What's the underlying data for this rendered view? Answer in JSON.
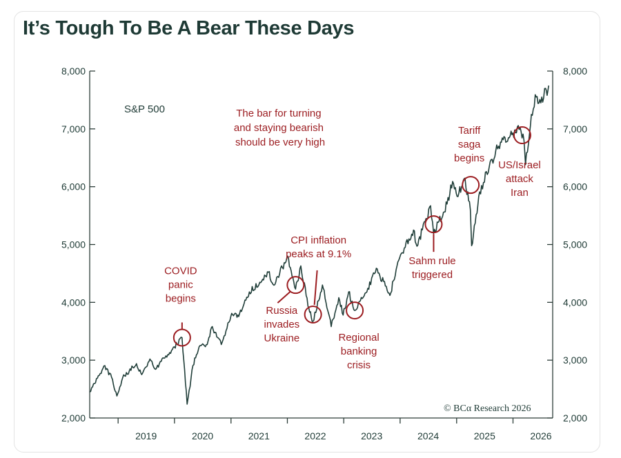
{
  "title": "It’s Tough To Be A Bear These Days",
  "chart_data": {
    "type": "line",
    "series": [
      {
        "name": "S&P 500",
        "points": [
          [
            "2018-07-01",
            2450
          ],
          [
            "2018-08-20",
            2690
          ],
          [
            "2018-10-01",
            2900
          ],
          [
            "2018-11-20",
            2700
          ],
          [
            "2018-12-24",
            2380
          ],
          [
            "2019-01-31",
            2700
          ],
          [
            "2019-04-30",
            2940
          ],
          [
            "2019-06-03",
            2750
          ],
          [
            "2019-07-26",
            3020
          ],
          [
            "2019-08-26",
            2850
          ],
          [
            "2019-10-31",
            3040
          ],
          [
            "2019-12-31",
            3230
          ],
          [
            "2020-02-19",
            3390
          ],
          [
            "2020-03-23",
            2240
          ],
          [
            "2020-04-30",
            2910
          ],
          [
            "2020-06-08",
            3230
          ],
          [
            "2020-07-31",
            3270
          ],
          [
            "2020-09-02",
            3580
          ],
          [
            "2020-10-30",
            3270
          ],
          [
            "2020-12-31",
            3760
          ],
          [
            "2021-02-26",
            3810
          ],
          [
            "2021-04-30",
            4180
          ],
          [
            "2021-06-30",
            4300
          ],
          [
            "2021-08-31",
            4520
          ],
          [
            "2021-09-30",
            4310
          ],
          [
            "2021-11-30",
            4600
          ],
          [
            "2022-01-03",
            4800
          ],
          [
            "2022-02-23",
            4230
          ],
          [
            "2022-03-29",
            4630
          ],
          [
            "2022-05-20",
            3900
          ],
          [
            "2022-06-16",
            3670
          ],
          [
            "2022-08-16",
            4300
          ],
          [
            "2022-10-12",
            3580
          ],
          [
            "2022-11-30",
            4080
          ],
          [
            "2022-12-28",
            3780
          ],
          [
            "2023-02-02",
            4180
          ],
          [
            "2023-03-13",
            3860
          ],
          [
            "2023-05-31",
            4180
          ],
          [
            "2023-07-31",
            4590
          ],
          [
            "2023-10-27",
            4120
          ],
          [
            "2023-12-29",
            4770
          ],
          [
            "2024-03-28",
            5250
          ],
          [
            "2024-04-19",
            4970
          ],
          [
            "2024-07-16",
            5670
          ],
          [
            "2024-08-05",
            5190
          ],
          [
            "2024-10-31",
            5700
          ],
          [
            "2024-12-06",
            6090
          ],
          [
            "2025-01-10",
            5830
          ],
          [
            "2025-02-19",
            6140
          ],
          [
            "2025-03-31",
            5600
          ],
          [
            "2025-04-08",
            4980
          ],
          [
            "2025-05-30",
            5910
          ],
          [
            "2025-07-31",
            6340
          ],
          [
            "2025-09-30",
            6700
          ],
          [
            "2025-11-10",
            6850
          ],
          [
            "2025-12-31",
            6930
          ],
          [
            "2026-02-10",
            6990
          ],
          [
            "2026-03-13",
            6800
          ],
          [
            "2026-03-23",
            6380
          ],
          [
            "2026-04-30",
            7250
          ],
          [
            "2026-05-31",
            7550
          ],
          [
            "2026-06-30",
            7450
          ],
          [
            "2026-07-31",
            7700
          ],
          [
            "2026-08-10",
            7580
          ],
          [
            "2026-08-20",
            7750
          ]
        ]
      }
    ],
    "series_label": "S&P 500",
    "x_ticks": [
      "2019",
      "2020",
      "2021",
      "2022",
      "2023",
      "2024",
      "2025",
      "2026"
    ],
    "y_ticks": [
      "2,000",
      "3,000",
      "4,000",
      "5,000",
      "6,000",
      "7,000",
      "8,000"
    ],
    "xlim": [
      "2018-07-01",
      "2026-09-15"
    ],
    "ylim": [
      2000,
      8000
    ],
    "grid": false,
    "right_axis": true,
    "credit": "© BCα Research 2026",
    "note": [
      "The bar for turning",
      "and staying bearish",
      "should be very high"
    ],
    "annotations": [
      {
        "date": "2020-02-19",
        "value": 3390,
        "lines": [
          "COVID",
          "panic",
          "begins"
        ]
      },
      {
        "date": "2022-02-23",
        "value": 4300,
        "lines": [
          "Russia",
          "invades",
          "Ukraine"
        ]
      },
      {
        "date": "2022-06-16",
        "value": 3790,
        "lines": [
          "CPI inflation",
          "peaks at 9.1%"
        ]
      },
      {
        "date": "2023-03-13",
        "value": 3860,
        "lines": [
          "Regional",
          "banking",
          "crisis"
        ]
      },
      {
        "date": "2024-08-05",
        "value": 5350,
        "lines": [
          "Sahm rule",
          "triggered"
        ]
      },
      {
        "date": "2025-04-02",
        "value": 6030,
        "lines": [
          "Tariff",
          "saga",
          "begins"
        ]
      },
      {
        "date": "2026-03-02",
        "value": 6890,
        "lines": [
          "US/Israel",
          "attack",
          "Iran"
        ]
      }
    ],
    "colors": {
      "line": "#1f3d38",
      "accent": "#9b1b1f",
      "axis": "#2a3b36",
      "text": "#1e3a35"
    }
  }
}
